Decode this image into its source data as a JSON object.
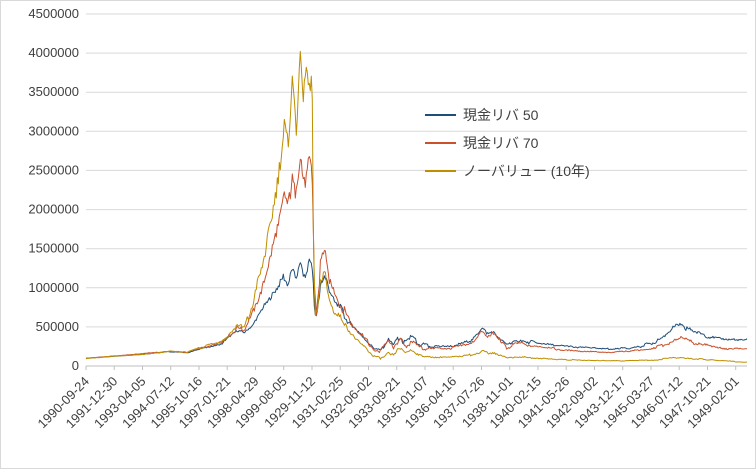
{
  "chart_style": {
    "background": "#ffffff",
    "border_color": "#d9d9d9",
    "grid_color": "#d9d9d9",
    "axis_line_color": "#bfbfbf",
    "tick_label_color": "#404040",
    "legend_text_color": "#404040"
  },
  "chart_data": {
    "type": "line",
    "title": "",
    "xlabel": "",
    "ylabel": "",
    "ylim": [
      0,
      4500000
    ],
    "y_tick_step": 500000,
    "grid": "horizontal",
    "legend_position": "inside-upper-center-right",
    "x_label_rotation_deg": 45,
    "x_index_max": 23.4,
    "x_labels": [
      "1990-09-24",
      "1991-12-30",
      "1993-04-05",
      "1994-07-12",
      "1995-10-16",
      "1997-01-21",
      "1998-04-29",
      "1999-08-05",
      "1929-11-12",
      "1931-02-25",
      "1932-06-02",
      "1933-09-21",
      "1935-01-07",
      "1936-04-16",
      "1937-07-26",
      "1938-11-01",
      "1940-02-15",
      "1941-05-26",
      "1942-09-02",
      "1943-12-17",
      "1945-03-27",
      "1946-07-12",
      "1947-10-21",
      "1949-02-01"
    ],
    "series": [
      {
        "name": "現金リバ 50",
        "color": "#1f4e79",
        "keypoints": [
          [
            0,
            100000,
            2000
          ],
          [
            1,
            125000,
            3000
          ],
          [
            2,
            150000,
            4000
          ],
          [
            3,
            185000,
            6000
          ],
          [
            3.6,
            170000,
            6000
          ],
          [
            4,
            215000,
            8000
          ],
          [
            4.5,
            260000,
            10000
          ],
          [
            4.8,
            290000,
            14000
          ],
          [
            5.1,
            380000,
            20000
          ],
          [
            5.35,
            450000,
            28000
          ],
          [
            5.6,
            440000,
            25000
          ],
          [
            5.9,
            520000,
            30000
          ],
          [
            6.2,
            680000,
            45000
          ],
          [
            6.5,
            850000,
            60000
          ],
          [
            6.8,
            1000000,
            70000
          ],
          [
            7.0,
            1150000,
            75000
          ],
          [
            7.15,
            1050000,
            70000
          ],
          [
            7.3,
            1250000,
            70000
          ],
          [
            7.45,
            1100000,
            70000
          ],
          [
            7.6,
            1300000,
            65000
          ],
          [
            7.75,
            1180000,
            70000
          ],
          [
            7.9,
            1320000,
            60000
          ],
          [
            7.98,
            1280000,
            55000
          ],
          [
            8.02,
            1200000,
            80000
          ],
          [
            8.08,
            800000,
            90000
          ],
          [
            8.15,
            650000,
            80000
          ],
          [
            8.3,
            1050000,
            90000
          ],
          [
            8.45,
            1150000,
            90000
          ],
          [
            8.6,
            950000,
            80000
          ],
          [
            8.8,
            800000,
            70000
          ],
          [
            9.0,
            720000,
            60000
          ],
          [
            9.3,
            550000,
            50000
          ],
          [
            9.6,
            430000,
            40000
          ],
          [
            10.0,
            300000,
            30000
          ],
          [
            10.2,
            230000,
            28000
          ],
          [
            10.4,
            210000,
            25000
          ],
          [
            10.7,
            320000,
            45000
          ],
          [
            10.9,
            260000,
            35000
          ],
          [
            11.1,
            390000,
            55000
          ],
          [
            11.3,
            300000,
            40000
          ],
          [
            11.5,
            360000,
            45000
          ],
          [
            11.8,
            280000,
            30000
          ],
          [
            12,
            260000,
            25000
          ],
          [
            12.5,
            245000,
            20000
          ],
          [
            13,
            265000,
            22000
          ],
          [
            13.6,
            310000,
            28000
          ],
          [
            13.9,
            420000,
            40000
          ],
          [
            14.05,
            500000,
            40000
          ],
          [
            14.2,
            430000,
            40000
          ],
          [
            14.4,
            470000,
            38000
          ],
          [
            14.6,
            380000,
            35000
          ],
          [
            14.9,
            290000,
            28000
          ],
          [
            15.1,
            310000,
            28000
          ],
          [
            15.4,
            330000,
            28000
          ],
          [
            15.7,
            300000,
            25000
          ],
          [
            16,
            290000,
            22000
          ],
          [
            16.5,
            270000,
            18000
          ],
          [
            17,
            255000,
            16000
          ],
          [
            17.5,
            235000,
            14000
          ],
          [
            18,
            225000,
            13000
          ],
          [
            18.5,
            215000,
            12000
          ],
          [
            19,
            225000,
            13000
          ],
          [
            19.5,
            245000,
            15000
          ],
          [
            20,
            290000,
            20000
          ],
          [
            20.5,
            370000,
            28000
          ],
          [
            20.9,
            520000,
            45000
          ],
          [
            21.1,
            545000,
            45000
          ],
          [
            21.3,
            470000,
            40000
          ],
          [
            21.6,
            430000,
            35000
          ],
          [
            22,
            380000,
            28000
          ],
          [
            22.4,
            350000,
            24000
          ],
          [
            22.8,
            330000,
            20000
          ],
          [
            23.1,
            345000,
            20000
          ],
          [
            23.4,
            340000,
            15000
          ]
        ]
      },
      {
        "name": "現金リバ 70",
        "color": "#c9512c",
        "keypoints": [
          [
            0,
            100000,
            2500
          ],
          [
            1,
            128000,
            3500
          ],
          [
            2,
            155000,
            5000
          ],
          [
            3,
            190000,
            7000
          ],
          [
            3.6,
            175000,
            7000
          ],
          [
            4,
            225000,
            10000
          ],
          [
            4.5,
            270000,
            12000
          ],
          [
            4.8,
            305000,
            16000
          ],
          [
            5.1,
            400000,
            25000
          ],
          [
            5.35,
            480000,
            32000
          ],
          [
            5.6,
            465000,
            30000
          ],
          [
            5.9,
            700000,
            50000
          ],
          [
            6.2,
            1000000,
            80000
          ],
          [
            6.5,
            1400000,
            120000
          ],
          [
            6.8,
            1850000,
            150000
          ],
          [
            7.0,
            2250000,
            170000
          ],
          [
            7.15,
            2050000,
            160000
          ],
          [
            7.3,
            2500000,
            150000
          ],
          [
            7.45,
            2250000,
            160000
          ],
          [
            7.6,
            2600000,
            140000
          ],
          [
            7.75,
            2350000,
            150000
          ],
          [
            7.9,
            2650000,
            130000
          ],
          [
            7.98,
            2550000,
            120000
          ],
          [
            8.02,
            2300000,
            150000
          ],
          [
            8.08,
            1200000,
            180000
          ],
          [
            8.15,
            750000,
            120000
          ],
          [
            8.3,
            1300000,
            110000
          ],
          [
            8.45,
            1480000,
            110000
          ],
          [
            8.6,
            1150000,
            100000
          ],
          [
            8.8,
            950000,
            80000
          ],
          [
            9.0,
            820000,
            70000
          ],
          [
            9.3,
            600000,
            55000
          ],
          [
            9.6,
            470000,
            45000
          ],
          [
            10.0,
            300000,
            32000
          ],
          [
            10.2,
            210000,
            28000
          ],
          [
            10.4,
            185000,
            25000
          ],
          [
            10.7,
            300000,
            45000
          ],
          [
            10.9,
            235000,
            35000
          ],
          [
            11.1,
            350000,
            55000
          ],
          [
            11.3,
            265000,
            40000
          ],
          [
            11.5,
            320000,
            45000
          ],
          [
            11.8,
            245000,
            30000
          ],
          [
            12,
            225000,
            25000
          ],
          [
            12.5,
            215000,
            20000
          ],
          [
            13,
            230000,
            22000
          ],
          [
            13.6,
            270000,
            28000
          ],
          [
            13.9,
            370000,
            38000
          ],
          [
            14.05,
            450000,
            38000
          ],
          [
            14.2,
            380000,
            36000
          ],
          [
            14.4,
            420000,
            35000
          ],
          [
            14.6,
            330000,
            32000
          ],
          [
            14.9,
            240000,
            25000
          ],
          [
            15.1,
            260000,
            25000
          ],
          [
            15.4,
            280000,
            25000
          ],
          [
            15.7,
            250000,
            22000
          ],
          [
            16,
            240000,
            20000
          ],
          [
            16.5,
            225000,
            16000
          ],
          [
            17,
            210000,
            15000
          ],
          [
            17.5,
            190000,
            13000
          ],
          [
            18,
            180000,
            12000
          ],
          [
            18.5,
            172000,
            11000
          ],
          [
            19,
            180000,
            12000
          ],
          [
            19.5,
            195000,
            13000
          ],
          [
            20,
            225000,
            16000
          ],
          [
            20.5,
            280000,
            22000
          ],
          [
            20.9,
            350000,
            32000
          ],
          [
            21.1,
            365000,
            32000
          ],
          [
            21.3,
            320000,
            28000
          ],
          [
            21.6,
            295000,
            24000
          ],
          [
            22,
            260000,
            20000
          ],
          [
            22.4,
            240000,
            18000
          ],
          [
            22.8,
            225000,
            15000
          ],
          [
            23.1,
            215000,
            14000
          ],
          [
            23.4,
            218000,
            12000
          ]
        ]
      },
      {
        "name": "ノーバリュー (10年)",
        "color": "#bf8f00",
        "keypoints": [
          [
            0,
            95000,
            3000
          ],
          [
            1,
            125000,
            4500
          ],
          [
            2,
            150000,
            6000
          ],
          [
            3,
            190000,
            9000
          ],
          [
            3.6,
            172000,
            9000
          ],
          [
            4,
            230000,
            13000
          ],
          [
            4.5,
            280000,
            16000
          ],
          [
            4.8,
            310000,
            20000
          ],
          [
            5.1,
            420000,
            30000
          ],
          [
            5.35,
            500000,
            40000
          ],
          [
            5.6,
            480000,
            38000
          ],
          [
            5.9,
            800000,
            70000
          ],
          [
            6.2,
            1250000,
            110000
          ],
          [
            6.5,
            1750000,
            170000
          ],
          [
            6.8,
            2400000,
            230000
          ],
          [
            7.0,
            2950000,
            260000
          ],
          [
            7.15,
            2650000,
            250000
          ],
          [
            7.3,
            3500000,
            250000
          ],
          [
            7.45,
            3000000,
            280000
          ],
          [
            7.6,
            4000000,
            150000
          ],
          [
            7.7,
            3400000,
            260000
          ],
          [
            7.8,
            3850000,
            220000
          ],
          [
            7.9,
            3450000,
            240000
          ],
          [
            7.98,
            3650000,
            200000
          ],
          [
            8.02,
            3200000,
            250000
          ],
          [
            8.05,
            1600000,
            250000
          ],
          [
            8.12,
            600000,
            140000
          ],
          [
            8.3,
            1000000,
            120000
          ],
          [
            8.45,
            1150000,
            120000
          ],
          [
            8.6,
            850000,
            90000
          ],
          [
            8.8,
            700000,
            70000
          ],
          [
            9.0,
            620000,
            60000
          ],
          [
            9.3,
            450000,
            45000
          ],
          [
            9.6,
            330000,
            35000
          ],
          [
            10.0,
            190000,
            25000
          ],
          [
            10.2,
            120000,
            18000
          ],
          [
            10.4,
            100000,
            15000
          ],
          [
            10.7,
            170000,
            30000
          ],
          [
            10.9,
            130000,
            20000
          ],
          [
            11.1,
            230000,
            40000
          ],
          [
            11.3,
            155000,
            25000
          ],
          [
            11.5,
            185000,
            30000
          ],
          [
            11.8,
            135000,
            18000
          ],
          [
            12,
            125000,
            15000
          ],
          [
            12.5,
            115000,
            12000
          ],
          [
            13,
            120000,
            12000
          ],
          [
            13.6,
            140000,
            16000
          ],
          [
            13.9,
            165000,
            20000
          ],
          [
            14.05,
            195000,
            22000
          ],
          [
            14.2,
            165000,
            20000
          ],
          [
            14.4,
            180000,
            20000
          ],
          [
            14.6,
            140000,
            16000
          ],
          [
            14.9,
            105000,
            12000
          ],
          [
            15.1,
            110000,
            12000
          ],
          [
            15.4,
            115000,
            12000
          ],
          [
            15.7,
            100000,
            10000
          ],
          [
            16,
            95000,
            10000
          ],
          [
            16.5,
            88000,
            9000
          ],
          [
            17,
            82000,
            8000
          ],
          [
            17.5,
            74000,
            7000
          ],
          [
            18,
            68000,
            6000
          ],
          [
            18.5,
            64000,
            6000
          ],
          [
            19,
            66000,
            6000
          ],
          [
            19.5,
            72000,
            7000
          ],
          [
            20,
            78000,
            8000
          ],
          [
            20.5,
            92000,
            10000
          ],
          [
            20.9,
            110000,
            12000
          ],
          [
            21.1,
            115000,
            12000
          ],
          [
            21.3,
            100000,
            10000
          ],
          [
            21.6,
            92000,
            9000
          ],
          [
            22,
            80000,
            8000
          ],
          [
            22.4,
            70000,
            7000
          ],
          [
            22.8,
            60000,
            6000
          ],
          [
            23.1,
            52000,
            5000
          ],
          [
            23.4,
            50000,
            4000
          ]
        ]
      }
    ]
  }
}
